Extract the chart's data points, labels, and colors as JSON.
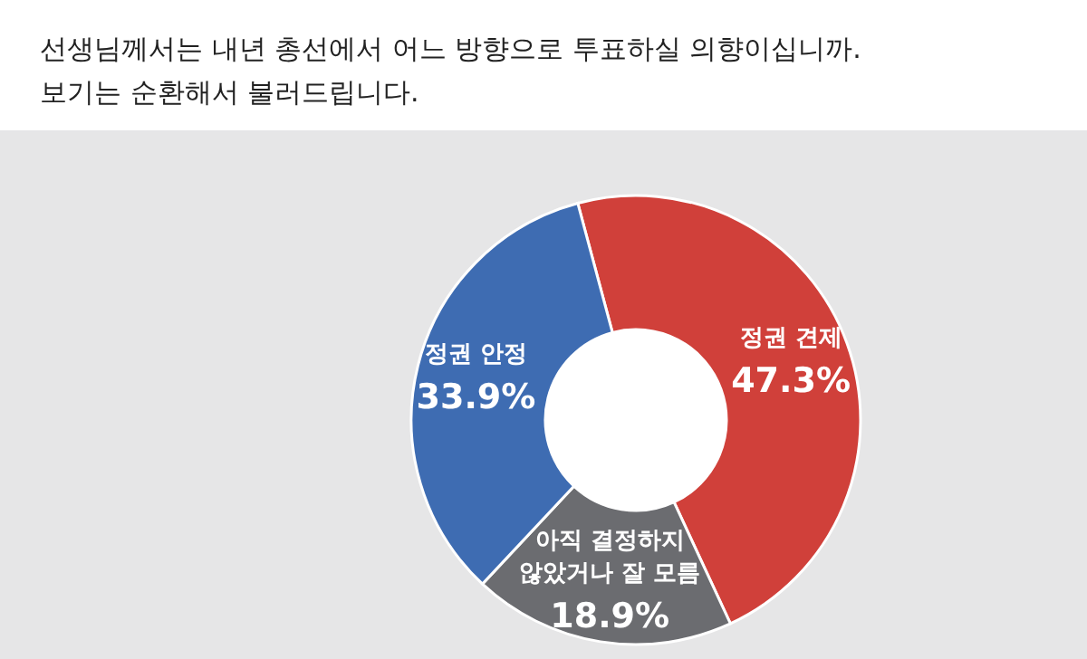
{
  "chart_data": {
    "type": "donut",
    "title": "선생님께서는 내년 총선에서 어느 방향으로 투표하실 의향이십니까.",
    "subtitle": "보기는 순환해서 불러드립니다.",
    "categories": [
      "정권 견제",
      "아직 결정하지 않았거나 잘 모름",
      "정권 안정"
    ],
    "values": [
      47.3,
      18.9,
      33.9
    ],
    "colors": [
      "#d0403a",
      "#6b6c70",
      "#3e6cb2"
    ],
    "value_labels": [
      "47.3%",
      "18.9%",
      "33.9%"
    ]
  }
}
